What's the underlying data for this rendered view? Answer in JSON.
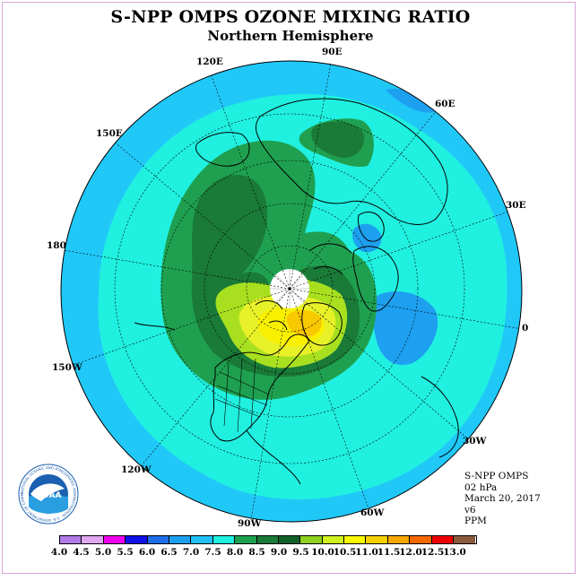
{
  "title": "S-NPP OMPS OZONE MIXING RATIO",
  "subtitle": "Northern Hemisphere",
  "longitude_labels": {
    "e90": "90E",
    "e60": "60E",
    "e30": "30E",
    "zero": "0",
    "w30": "30W",
    "w60": "60W",
    "w90": "90W",
    "w120": "120W",
    "w150": "150W",
    "d180": "180",
    "e150": "150E",
    "e120": "120E"
  },
  "info": {
    "instrument": "S-NPP OMPS",
    "level": "02 hPa",
    "date": "March 20, 2017",
    "version": "v6",
    "units": "PPM"
  },
  "colorbar": {
    "ticks": [
      "4.0",
      "4.5",
      "5.0",
      "5.5",
      "6.0",
      "6.5",
      "7.0",
      "7.5",
      "8.0",
      "8.5",
      "9.0",
      "9.5",
      "10.0",
      "10.5",
      "11.0",
      "11.5",
      "12.0",
      "12.5",
      "13.0"
    ],
    "colors": [
      "#b07ae8",
      "#e0a8f0",
      "#f000f0",
      "#1010e8",
      "#1f6ee8",
      "#1ea0f0",
      "#22c0f8",
      "#20f0e0",
      "#1fa050",
      "#1a7a38",
      "#106028",
      "#90d020",
      "#d0f020",
      "#f8f800",
      "#f8d000",
      "#f8a800",
      "#f86800",
      "#f00000",
      "#8b5a3c"
    ]
  },
  "map_colors": {
    "ocean_bg": "#20c8f8",
    "level_7_5": "#20f0e0",
    "level_8": "#1fa050",
    "level_8_5": "#1a7a38",
    "level_9_5": "#a8e020",
    "level_10": "#e8f028",
    "level_10_5": "#f8f000",
    "level_11": "#f8c800",
    "mid_blue": "#1ea0f0"
  },
  "logo": {
    "text": "NOAA",
    "ring_text": "NATIONAL OCEANIC AND ATMOSPHERIC ADMINISTRATION · U.S. DEPARTMENT OF COMMERCE"
  }
}
